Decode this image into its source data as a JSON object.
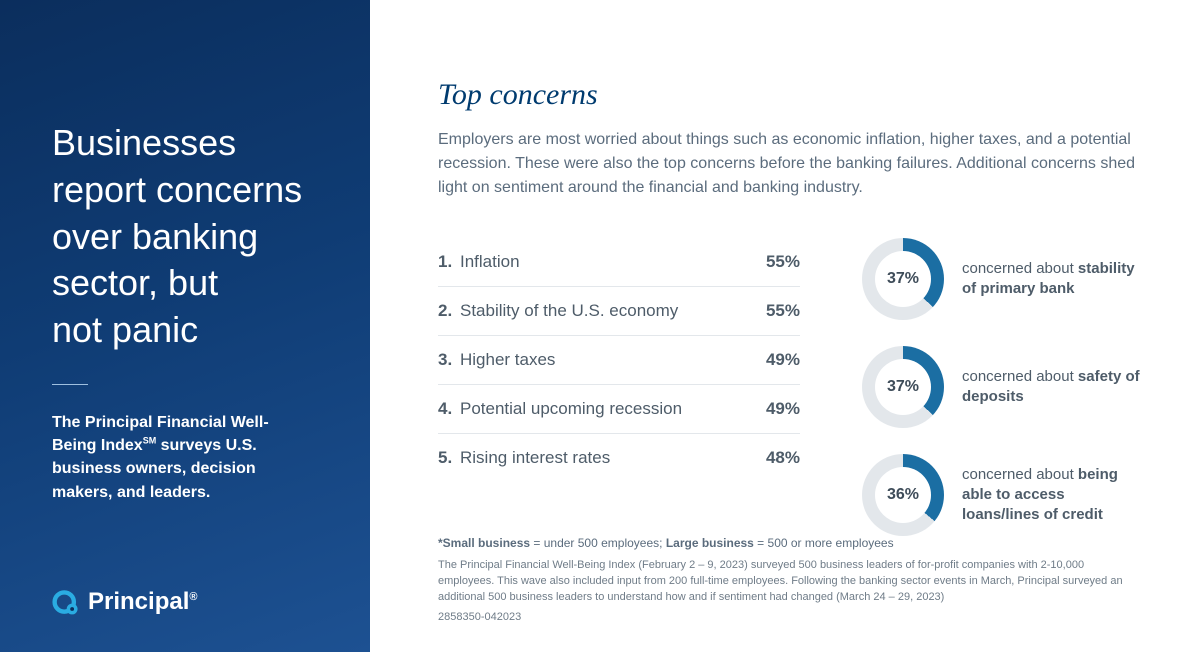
{
  "sidebar": {
    "title": "Businesses report concerns over banking sector, but not panic",
    "sub_pre": "The Principal Financial Well-Being Index",
    "sub_sm": "SM",
    "sub_post": " surveys U.S. business owners, decision makers, and leaders.",
    "logo_text": "Principal",
    "logo_reg": "®",
    "gradient_from": "#0b2e5d",
    "gradient_to": "#1d5192"
  },
  "main": {
    "section_title": "Top concerns",
    "intro": "Employers are most worried about things such as economic inflation, higher taxes, and a potential recession. These were also the top concerns before the banking failures. Additional concerns shed light on sentiment around the financial and banking industry.",
    "title_color": "#003b6f",
    "text_color": "#5b6c7d"
  },
  "concerns": [
    {
      "rank": "1.",
      "label": "Inflation",
      "value": "55%"
    },
    {
      "rank": "2.",
      "label": "Stability of the U.S. economy",
      "value": "55%"
    },
    {
      "rank": "3.",
      "label": "Higher taxes",
      "value": "49%"
    },
    {
      "rank": "4.",
      "label": "Potential upcoming recession",
      "value": "49%"
    },
    {
      "rank": "5.",
      "label": "Rising interest rates",
      "value": "48%"
    }
  ],
  "donuts": {
    "fill_color": "#1b6ea3",
    "track_color": "#e3e7eb",
    "items": [
      {
        "pct": 37,
        "label": "37%",
        "text_pre": "concerned about ",
        "text_bold": "stability of primary bank"
      },
      {
        "pct": 37,
        "label": "37%",
        "text_pre": "concerned about ",
        "text_bold": "safety of deposits"
      },
      {
        "pct": 36,
        "label": "36%",
        "text_pre": "concerned about ",
        "text_bold": "being able to access loans/lines of credit"
      }
    ]
  },
  "footer": {
    "defs_small_b": "*Small business",
    "defs_small": " = under 500 employees;   ",
    "defs_large_b": "Large business",
    "defs_large": " = 500 or more employees",
    "note": "The Principal Financial Well-Being Index (February 2 – 9, 2023) surveyed 500 business leaders of for-profit companies with 2-10,000 employees. This wave also included input from 200 full-time employees. Following the banking sector events in March, Principal surveyed an additional 500 business leaders to understand how and if sentiment had changed (March 24 – 29, 2023)",
    "code": "2858350-042023"
  }
}
